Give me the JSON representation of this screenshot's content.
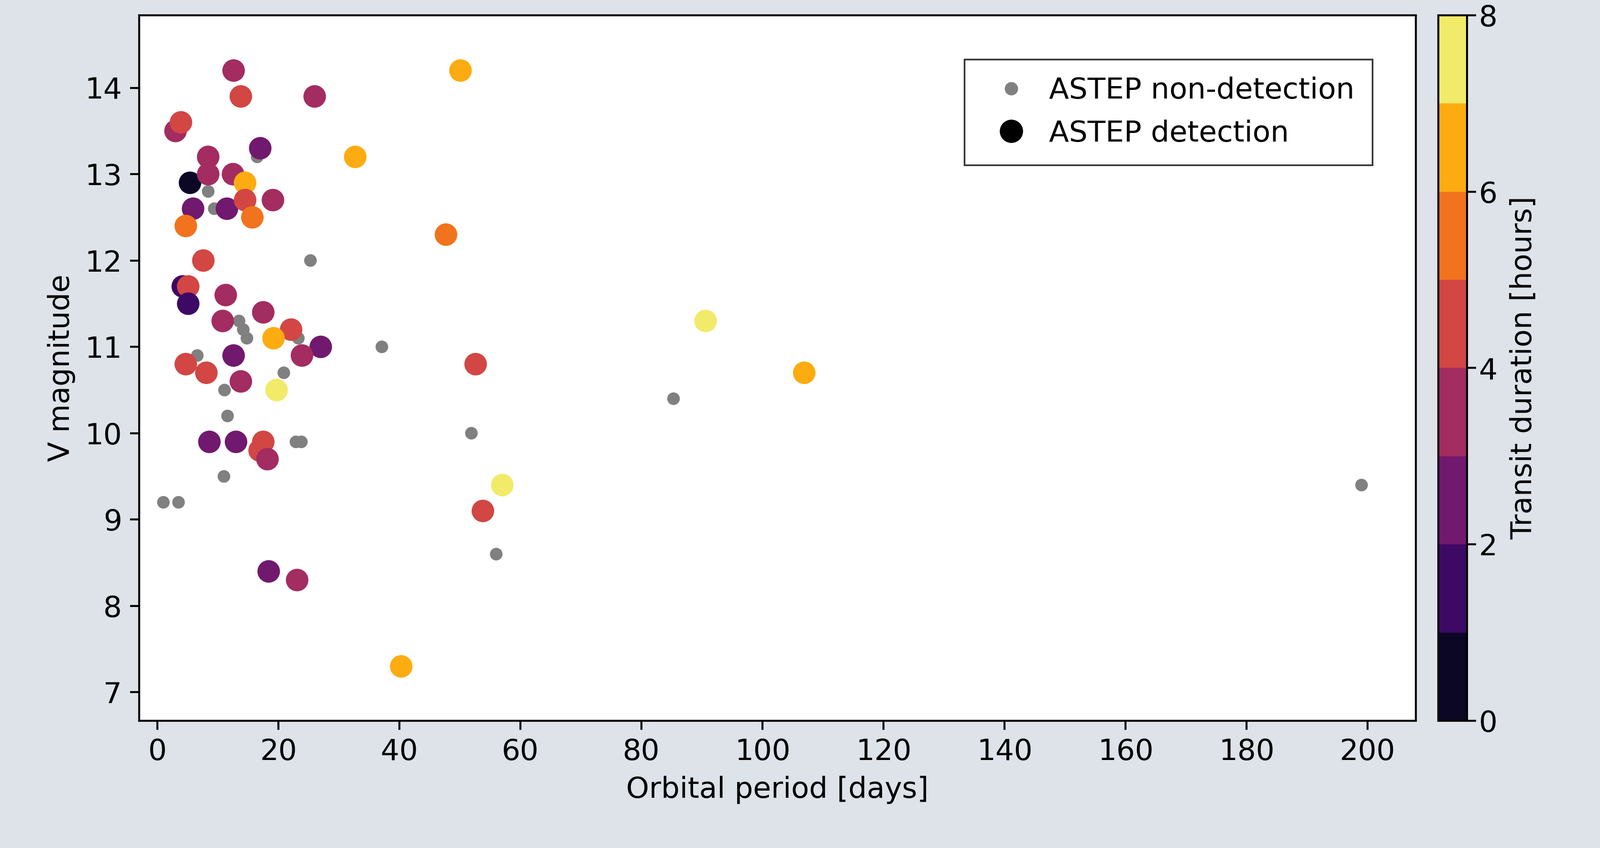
{
  "chart_data": {
    "type": "scatter",
    "xlabel": "Orbital period [days]",
    "ylabel": "V magnitude",
    "xlim": [
      -3,
      208
    ],
    "ylim": [
      6.67,
      14.84
    ],
    "xticks": [
      0,
      20,
      40,
      60,
      80,
      100,
      120,
      140,
      160,
      180,
      200
    ],
    "yticks": [
      7,
      8,
      9,
      10,
      11,
      12,
      13,
      14
    ],
    "legend": "upper right",
    "colorbar": {
      "label": "Transit duration [hours]",
      "range": [
        0,
        8
      ],
      "ticks": [
        0,
        2,
        4,
        6,
        8
      ],
      "bins": [
        0,
        1,
        2,
        3,
        4,
        5,
        6,
        7,
        8
      ]
    },
    "series": [
      {
        "name": "ASTEP non-detection",
        "color": "#808080",
        "marker": "circle",
        "x": [
          1.0,
          3.5,
          11.0,
          11.6,
          11.1,
          20.9,
          22.9,
          23.8,
          25.3,
          37.1,
          51.9,
          56.0,
          85.3,
          199,
          6.6,
          8.4,
          9.4,
          13.5,
          14.2,
          14.8,
          16.5,
          23.3
        ],
        "values": [
          9.2,
          9.2,
          9.5,
          10.2,
          10.5,
          10.7,
          9.9,
          9.9,
          12.0,
          11.0,
          10.0,
          8.6,
          10.4,
          9.4,
          10.9,
          12.8,
          12.6,
          11.3,
          11.2,
          11.1,
          13.2,
          11.1
        ]
      },
      {
        "name": "ASTEP detection",
        "color": "#000000",
        "marker": "circle",
        "x": [
          3.0,
          3.9,
          12.6,
          13.8,
          26.0,
          50.1,
          32.7,
          5.4,
          8.4,
          8.4,
          12.5,
          17.0,
          14.5,
          5.9,
          4.7,
          11.5,
          14.5,
          15.7,
          19.1,
          47.7,
          7.6,
          4.2,
          5.1,
          5.1,
          11.3,
          10.8,
          17.5,
          22.1,
          19.2,
          27.0,
          23.9,
          12.6,
          4.7,
          8.1,
          13.8,
          52.6,
          90.6,
          106.9,
          19.7,
          8.6,
          13.0,
          17.5,
          16.9,
          18.2,
          57.0,
          53.8,
          18.4,
          23.1,
          40.3
        ],
        "values": [
          13.5,
          13.6,
          14.2,
          13.9,
          13.9,
          14.2,
          13.2,
          12.9,
          13.2,
          13.0,
          13.0,
          13.3,
          12.9,
          12.6,
          12.4,
          12.6,
          12.7,
          12.5,
          12.7,
          12.3,
          12.0,
          11.7,
          11.7,
          11.5,
          11.6,
          11.3,
          11.4,
          11.2,
          11.1,
          11.0,
          10.9,
          10.9,
          10.8,
          10.7,
          10.6,
          10.8,
          11.3,
          10.7,
          10.5,
          9.9,
          9.9,
          9.9,
          9.8,
          9.7,
          9.4,
          9.1,
          8.4,
          8.3,
          7.3
        ],
        "duration": [
          3.5,
          4.5,
          3.5,
          4.5,
          3.5,
          6.5,
          6.5,
          0.5,
          3.5,
          3.5,
          3.5,
          2.5,
          6.5,
          2.5,
          5.5,
          2.5,
          4.5,
          5.5,
          3.5,
          5.5,
          4.5,
          1.5,
          4.5,
          1.5,
          3.5,
          3.5,
          3.5,
          4.5,
          6.5,
          2.5,
          3.5,
          2.5,
          4.5,
          4.5,
          3.5,
          4.5,
          7.5,
          6.5,
          7.5,
          2.5,
          2.5,
          4.5,
          4.5,
          3.5,
          7.5,
          4.5,
          2.5,
          3.5,
          6.5
        ]
      }
    ]
  }
}
